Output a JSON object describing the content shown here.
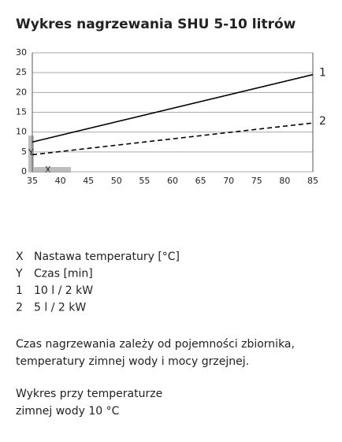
{
  "chart_data": {
    "type": "line",
    "title": "Wykres nagrzewania SHU 5-10 litrów",
    "x": [
      35,
      85
    ],
    "series": [
      {
        "name": "1",
        "description": "10 l / 2 kW",
        "color": "#000000",
        "dashed": false,
        "values": [
          7.5,
          24.5
        ]
      },
      {
        "name": "2",
        "description": "5 l / 2 kW",
        "color": "#000000",
        "dashed": true,
        "values": [
          4.3,
          12.3
        ]
      }
    ],
    "x_marker": "X",
    "y_marker": "Y",
    "x_label": "Nastawa temperatury [°C]",
    "y_label": "Czas [min]",
    "xlim": [
      35,
      85
    ],
    "ylim": [
      0,
      30
    ],
    "xticks": [
      35,
      40,
      45,
      50,
      55,
      60,
      65,
      70,
      75,
      80,
      85
    ],
    "yticks": [
      0,
      5,
      10,
      15,
      20,
      25,
      30
    ],
    "grid": true
  },
  "notes": [
    [
      "Czas nagrzewania zależy od pojemności zbiornika,",
      "temperatury zimnej wody i mocy grzejnej."
    ],
    [
      "Wykres przy temperaturze",
      "zimnej wody 10 °C"
    ]
  ]
}
